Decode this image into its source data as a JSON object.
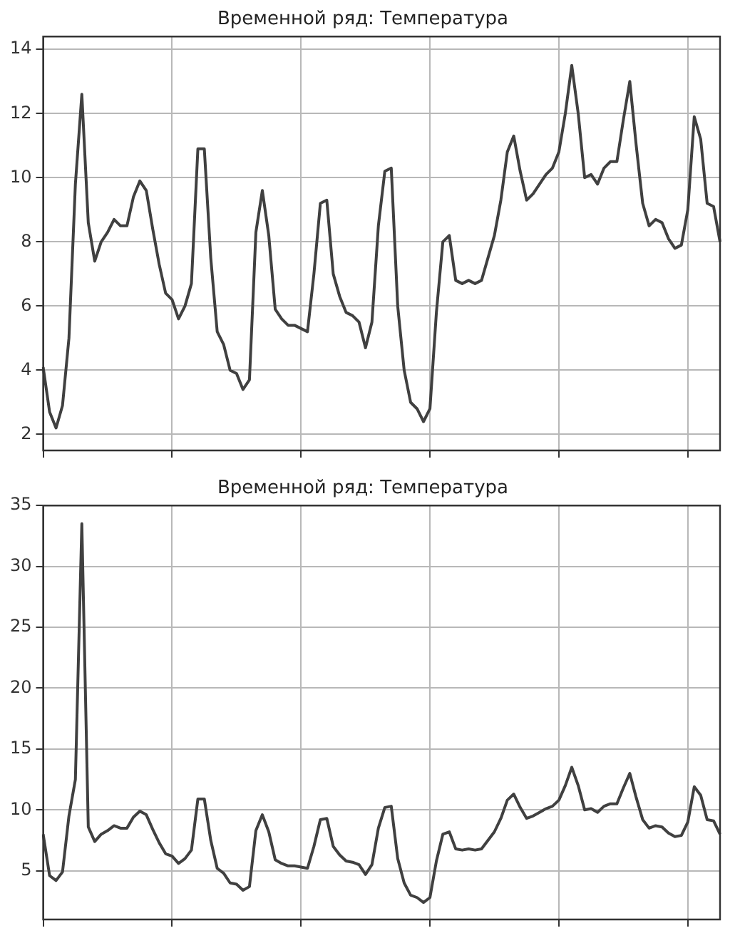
{
  "chart_data": [
    {
      "type": "line",
      "title": "Временной ряд: Температура",
      "categories": [
        null,
        null,
        null,
        null,
        null,
        null,
        null,
        null,
        null,
        null,
        null,
        null,
        null,
        null,
        null,
        null,
        null,
        null,
        null,
        null,
        null,
        null,
        null,
        null,
        null,
        null,
        null,
        null,
        null,
        null,
        null,
        null,
        null,
        null,
        null,
        null,
        null,
        null,
        null,
        null,
        null,
        null,
        null,
        null,
        null,
        null,
        null,
        null,
        null,
        null,
        null,
        null,
        null,
        null,
        null,
        null,
        null,
        null,
        null,
        null,
        null,
        null,
        null,
        null,
        null,
        null,
        null,
        null,
        null,
        null,
        null,
        null,
        null,
        null,
        null,
        null,
        null,
        null,
        null,
        null,
        null,
        null,
        null,
        null,
        null,
        null,
        null,
        null,
        null,
        null,
        null,
        null,
        null,
        null,
        null,
        null,
        null,
        null,
        null,
        null,
        null,
        null,
        null,
        null,
        null,
        null
      ],
      "series": [
        {
          "color": "#404040",
          "values": [
            4.1,
            2.7,
            2.2,
            2.9,
            5.0,
            9.8,
            12.6,
            8.6,
            7.4,
            8.0,
            8.3,
            8.7,
            8.5,
            8.5,
            9.4,
            9.9,
            9.6,
            8.4,
            7.3,
            6.4,
            6.2,
            5.6,
            6.0,
            6.7,
            10.9,
            10.9,
            7.5,
            5.2,
            4.8,
            4.0,
            3.9,
            3.4,
            3.7,
            8.3,
            9.6,
            8.2,
            5.9,
            5.6,
            5.4,
            5.4,
            5.3,
            5.2,
            7.0,
            9.2,
            9.3,
            7.0,
            6.3,
            5.8,
            5.7,
            5.5,
            4.7,
            5.5,
            8.5,
            10.2,
            10.3,
            6.0,
            4.0,
            3.0,
            2.8,
            2.4,
            2.8,
            5.8,
            8.0,
            8.2,
            6.8,
            6.7,
            6.8,
            6.7,
            6.8,
            7.5,
            8.2,
            9.3,
            10.8,
            11.3,
            10.2,
            9.3,
            9.5,
            9.8,
            10.1,
            10.3,
            10.8,
            12.0,
            13.5,
            12.0,
            10.0,
            10.1,
            9.8,
            10.3,
            10.5,
            10.5,
            11.8,
            13.0,
            11.0,
            9.2,
            8.5,
            8.7,
            8.6,
            8.1,
            7.8,
            7.9,
            9.0,
            11.9,
            11.2,
            9.2,
            9.1,
            8.0
          ]
        }
      ],
      "ylim": [
        1.5,
        14.4
      ],
      "yticks": [
        2,
        4,
        6,
        8,
        10,
        12,
        14
      ],
      "grid": true,
      "tick_labels": "y"
    },
    {
      "type": "line",
      "title": "Временной ряд: Температура",
      "categories": [
        null,
        null,
        null,
        null,
        null,
        null,
        null,
        null,
        null,
        null,
        null,
        null,
        null,
        null,
        null,
        null,
        null,
        null,
        null,
        null,
        null,
        null,
        null,
        null,
        null,
        null,
        null,
        null,
        null,
        null,
        null,
        null,
        null,
        null,
        null,
        null,
        null,
        null,
        null,
        null,
        null,
        null,
        null,
        null,
        null,
        null,
        null,
        null,
        null,
        null,
        null,
        null,
        null,
        null,
        null,
        null,
        null,
        null,
        null,
        null,
        null,
        null,
        null,
        null,
        null,
        null,
        null,
        null,
        null,
        null,
        null,
        null,
        null,
        null,
        null,
        null,
        null,
        null,
        null,
        null,
        null,
        null,
        null,
        null,
        null,
        null,
        null,
        null,
        null,
        null,
        null,
        null,
        null,
        null,
        null,
        null,
        null,
        null,
        null,
        null,
        null,
        null,
        null,
        null,
        null,
        null
      ],
      "series": [
        {
          "color": "#404040",
          "values": [
            8.0,
            4.6,
            4.2,
            4.9,
            9.5,
            12.5,
            33.5,
            8.6,
            7.4,
            8.0,
            8.3,
            8.7,
            8.5,
            8.5,
            9.4,
            9.9,
            9.6,
            8.4,
            7.3,
            6.4,
            6.2,
            5.6,
            6.0,
            6.7,
            10.9,
            10.9,
            7.5,
            5.2,
            4.8,
            4.0,
            3.9,
            3.4,
            3.7,
            8.3,
            9.6,
            8.2,
            5.9,
            5.6,
            5.4,
            5.4,
            5.3,
            5.2,
            7.0,
            9.2,
            9.3,
            7.0,
            6.3,
            5.8,
            5.7,
            5.5,
            4.7,
            5.5,
            8.5,
            10.2,
            10.3,
            6.0,
            4.0,
            3.0,
            2.8,
            2.4,
            2.8,
            5.8,
            8.0,
            8.2,
            6.8,
            6.7,
            6.8,
            6.7,
            6.8,
            7.5,
            8.2,
            9.3,
            10.8,
            11.3,
            10.2,
            9.3,
            9.5,
            9.8,
            10.1,
            10.3,
            10.8,
            12.0,
            13.5,
            12.0,
            10.0,
            10.1,
            9.8,
            10.3,
            10.5,
            10.5,
            11.8,
            13.0,
            11.0,
            9.2,
            8.5,
            8.7,
            8.6,
            8.1,
            7.8,
            7.9,
            9.0,
            11.9,
            11.2,
            9.2,
            9.1,
            8.0
          ]
        }
      ],
      "ylim": [
        1,
        35
      ],
      "yticks": [
        5,
        10,
        15,
        20,
        25,
        30,
        35
      ],
      "grid": true,
      "tick_labels": "y"
    }
  ]
}
